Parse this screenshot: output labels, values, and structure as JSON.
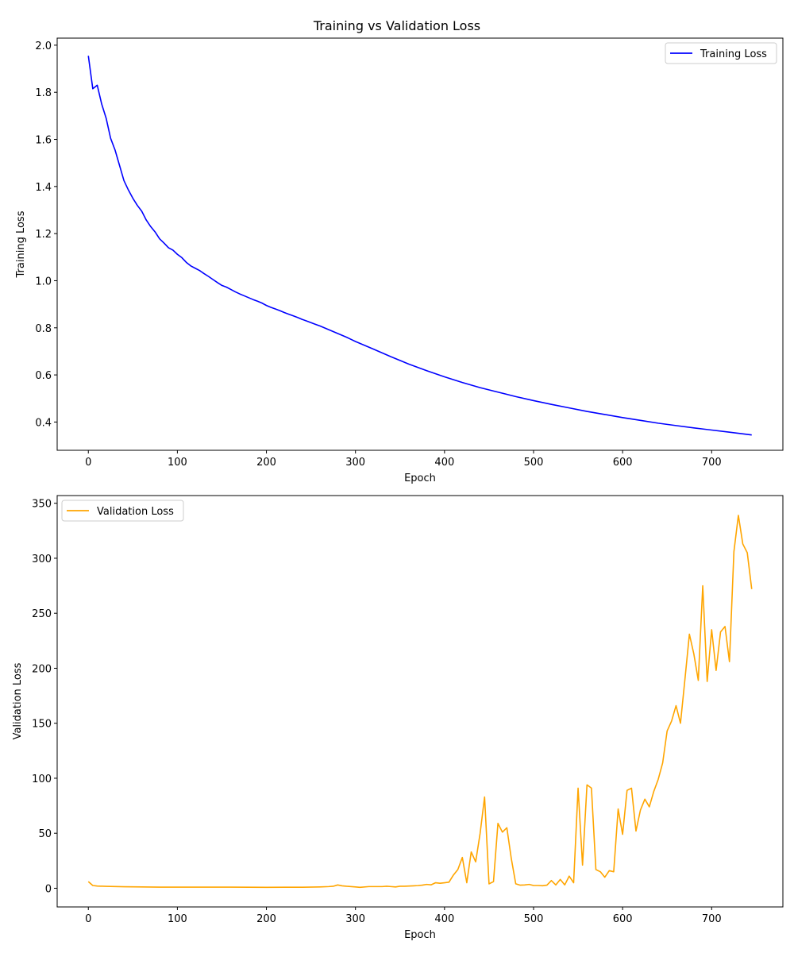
{
  "figure": {
    "title": "Training vs Validation Loss"
  },
  "chart_data": [
    {
      "type": "line",
      "title": "Training vs Validation Loss",
      "xlabel": "Epoch",
      "ylabel": "Training Loss",
      "xlim": [
        -35,
        780
      ],
      "ylim": [
        0.28,
        2.03
      ],
      "xticks": [
        0,
        100,
        200,
        300,
        400,
        500,
        600,
        700
      ],
      "yticks": [
        0.4,
        0.6,
        0.8,
        1.0,
        1.2,
        1.4,
        1.6,
        1.8,
        2.0
      ],
      "ytick_labels": [
        "0.4",
        "0.6",
        "0.8",
        "1.0",
        "1.2",
        "1.4",
        "1.6",
        "1.8",
        "2.0"
      ],
      "grid": false,
      "legend": "upper right",
      "series": [
        {
          "name": "Training Loss",
          "color": "#0000ff",
          "x": [
            0,
            5,
            10,
            15,
            20,
            25,
            30,
            35,
            40,
            45,
            50,
            55,
            60,
            65,
            70,
            75,
            80,
            85,
            90,
            95,
            100,
            105,
            110,
            115,
            120,
            125,
            130,
            135,
            140,
            145,
            150,
            155,
            160,
            165,
            170,
            175,
            180,
            185,
            190,
            195,
            200,
            205,
            210,
            215,
            220,
            225,
            230,
            235,
            240,
            245,
            250,
            255,
            260,
            265,
            270,
            275,
            280,
            285,
            290,
            295,
            300,
            320,
            340,
            360,
            380,
            400,
            420,
            440,
            460,
            480,
            500,
            520,
            540,
            560,
            580,
            600,
            620,
            640,
            660,
            680,
            700,
            720,
            745
          ],
          "y": [
            1.955,
            1.815,
            1.83,
            1.75,
            1.69,
            1.605,
            1.555,
            1.49,
            1.425,
            1.385,
            1.35,
            1.32,
            1.295,
            1.258,
            1.23,
            1.207,
            1.178,
            1.16,
            1.14,
            1.13,
            1.112,
            1.098,
            1.078,
            1.063,
            1.053,
            1.043,
            1.03,
            1.018,
            1.005,
            0.992,
            0.98,
            0.973,
            0.963,
            0.953,
            0.944,
            0.936,
            0.928,
            0.92,
            0.913,
            0.905,
            0.895,
            0.887,
            0.88,
            0.873,
            0.865,
            0.858,
            0.851,
            0.844,
            0.836,
            0.829,
            0.822,
            0.815,
            0.808,
            0.8,
            0.792,
            0.784,
            0.776,
            0.768,
            0.76,
            0.751,
            0.742,
            0.71,
            0.677,
            0.646,
            0.618,
            0.592,
            0.568,
            0.546,
            0.527,
            0.508,
            0.491,
            0.475,
            0.46,
            0.445,
            0.432,
            0.419,
            0.407,
            0.395,
            0.385,
            0.375,
            0.366,
            0.357,
            0.345
          ]
        }
      ]
    },
    {
      "type": "line",
      "title": "",
      "xlabel": "Epoch",
      "ylabel": "Validation Loss",
      "xlim": [
        -35,
        780
      ],
      "ylim": [
        -17,
        357
      ],
      "xticks": [
        0,
        100,
        200,
        300,
        400,
        500,
        600,
        700
      ],
      "yticks": [
        0,
        50,
        100,
        150,
        200,
        250,
        300,
        350
      ],
      "ytick_labels": [
        "0",
        "50",
        "100",
        "150",
        "200",
        "250",
        "300",
        "350"
      ],
      "grid": false,
      "legend": "upper left",
      "series": [
        {
          "name": "Validation Loss",
          "color": "#ffa500",
          "x": [
            0,
            5,
            10,
            20,
            40,
            60,
            80,
            100,
            120,
            140,
            160,
            180,
            200,
            220,
            240,
            260,
            270,
            275,
            280,
            285,
            290,
            300,
            305,
            315,
            320,
            330,
            335,
            340,
            345,
            350,
            355,
            360,
            365,
            370,
            375,
            380,
            385,
            390,
            395,
            400,
            405,
            410,
            415,
            420,
            425,
            430,
            435,
            440,
            445,
            450,
            455,
            460,
            465,
            470,
            475,
            480,
            485,
            490,
            495,
            500,
            505,
            510,
            515,
            520,
            525,
            530,
            535,
            540,
            545,
            550,
            555,
            560,
            565,
            570,
            575,
            580,
            585,
            590,
            595,
            600,
            605,
            610,
            615,
            620,
            625,
            630,
            635,
            640,
            645,
            650,
            655,
            660,
            665,
            670,
            675,
            680,
            685,
            690,
            695,
            700,
            705,
            710,
            715,
            720,
            725,
            730,
            735,
            740,
            745
          ],
          "y": [
            6,
            2.5,
            2,
            1.7,
            1.4,
            1.2,
            1.0,
            1.0,
            1.0,
            1.0,
            1.0,
            0.9,
            0.8,
            0.9,
            0.9,
            1.2,
            1.5,
            1.8,
            3,
            2.2,
            1.8,
            1.2,
            0.8,
            1.5,
            1.5,
            1.5,
            1.8,
            1.5,
            1.2,
            1.8,
            1.8,
            2,
            2.2,
            2.4,
            2.8,
            3.5,
            3.1,
            5,
            4.5,
            5,
            5.5,
            12,
            17,
            28,
            5,
            33,
            24,
            50,
            83,
            4,
            6,
            59,
            51,
            55,
            27,
            4,
            2.8,
            3,
            3.5,
            2.5,
            2.5,
            2.3,
            2.8,
            7,
            3,
            8,
            3,
            11,
            5,
            91,
            21,
            94,
            91,
            17,
            15,
            10,
            16,
            15,
            72,
            49,
            89,
            91,
            52,
            71,
            81,
            74,
            88,
            99,
            114,
            143,
            152,
            166,
            150,
            190,
            231,
            213,
            189,
            275,
            188,
            235,
            198,
            233,
            238,
            206,
            306,
            339,
            313,
            305,
            272
          ]
        }
      ]
    }
  ]
}
